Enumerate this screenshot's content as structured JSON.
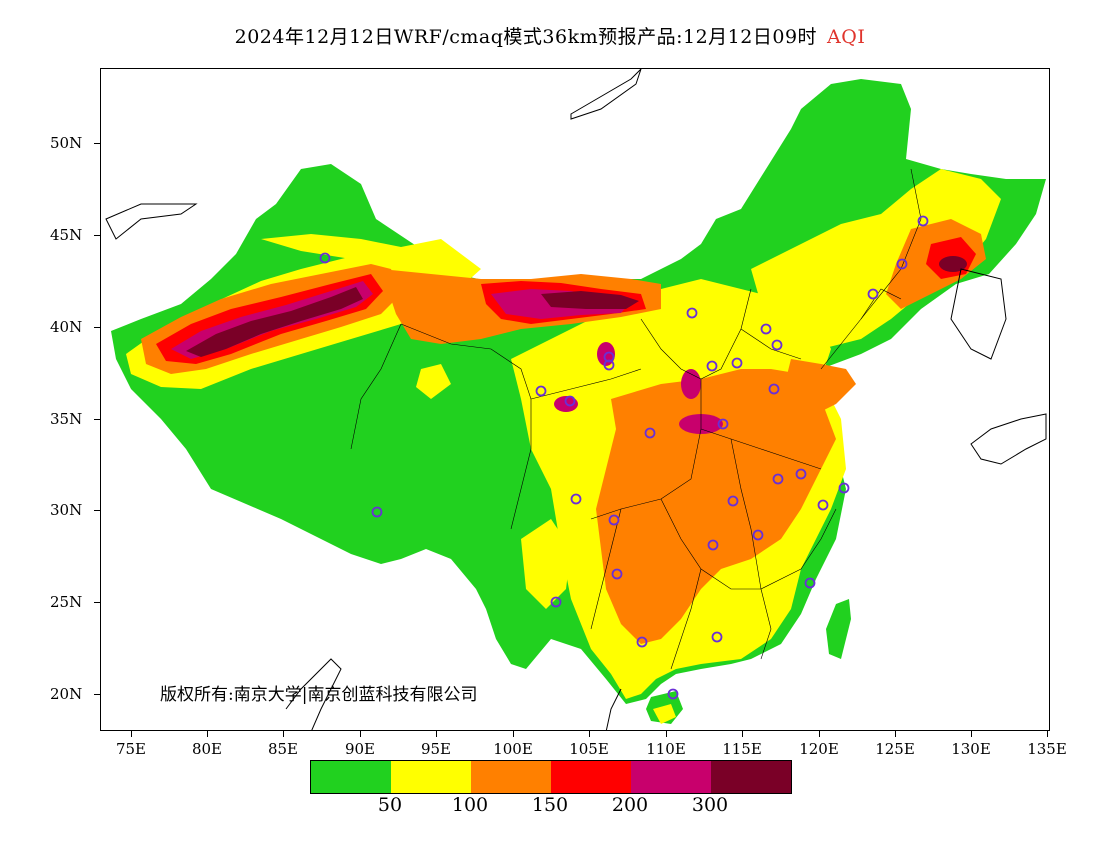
{
  "title": {
    "text": "2024年12月12日WRF/cmaq模式36km预报产品:12月12日09时",
    "variable": "AQI"
  },
  "copyright": "版权所有:南京大学|南京创蓝科技有限公司",
  "axes": {
    "lat_labels": [
      "50N",
      "45N",
      "40N",
      "35N",
      "30N",
      "25N",
      "20N"
    ],
    "lon_labels": [
      "75E",
      "80E",
      "85E",
      "90E",
      "95E",
      "100E",
      "105E",
      "110E",
      "115E",
      "120E",
      "125E",
      "130E",
      "135E"
    ]
  },
  "legend": {
    "colors": [
      "#21d11f",
      "#ffff00",
      "#ff8000",
      "#ff0000",
      "#c8006c",
      "#7a0027"
    ],
    "labels": [
      "50",
      "100",
      "150",
      "200",
      "300"
    ]
  },
  "map_colors": {
    "good": "#21d11f",
    "moderate": "#ffff00",
    "unhealthy_sensitive": "#ff8000",
    "unhealthy": "#ff0000",
    "very_unhealthy": "#c8006c",
    "hazardous": "#7a0027",
    "station": "#6a2fd6"
  }
}
